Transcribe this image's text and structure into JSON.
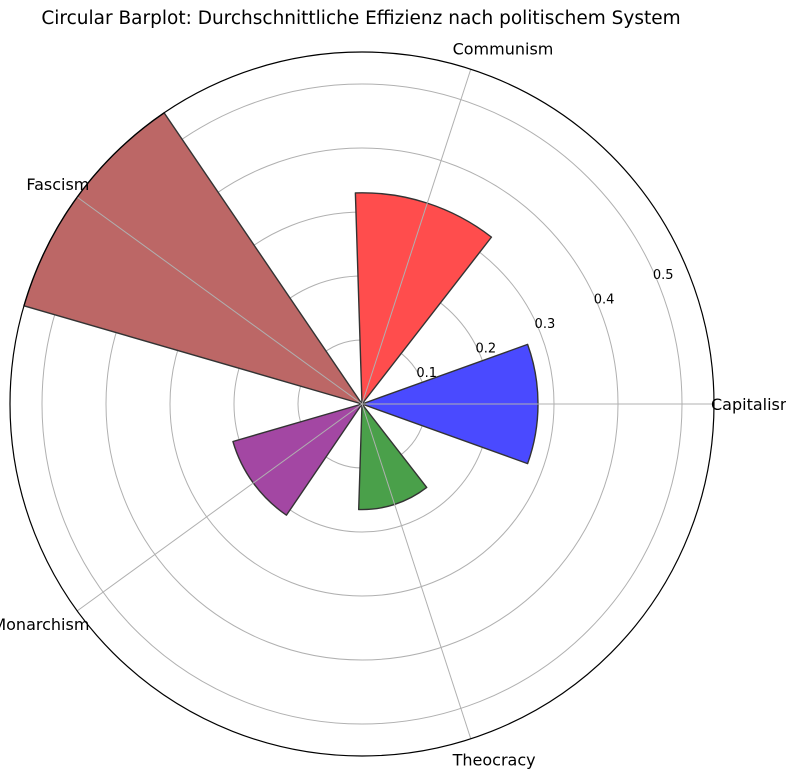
{
  "chart_data": {
    "type": "bar",
    "subtype": "polar",
    "title": "Circular Barplot: Durchschnittliche Effizienz nach politischem System",
    "categories": [
      "Capitalism",
      "Communism",
      "Fascism",
      "Monarchism",
      "Theocracy"
    ],
    "values": [
      0.275,
      0.33,
      0.55,
      0.21,
      0.165
    ],
    "colors": [
      "#4a4aff",
      "#ff4d4d",
      "#bc6766",
      "#a347a3",
      "#4aa04a"
    ],
    "radial_ticks": [
      "0.1",
      "0.2",
      "0.3",
      "0.4",
      "0.5"
    ],
    "rlim": [
      0,
      0.55
    ],
    "grid": true,
    "legend": "none"
  }
}
